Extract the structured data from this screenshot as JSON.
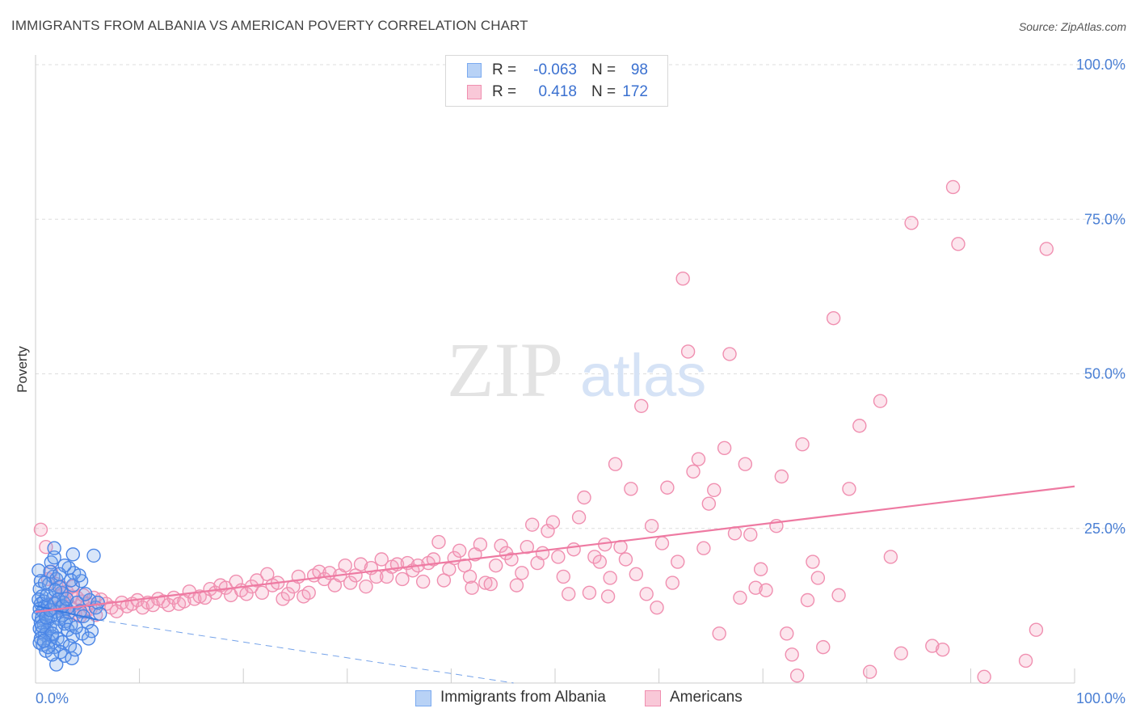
{
  "title": "IMMIGRANTS FROM ALBANIA VS AMERICAN POVERTY CORRELATION CHART",
  "source": "Source: ZipAtlas.com",
  "watermark": {
    "zip": "ZIP",
    "atlas": "atlas"
  },
  "stats": [
    {
      "r_label": "R =",
      "r_value": "-0.063",
      "n_label": "N =",
      "n_value": "98",
      "color": "#7aaaf0",
      "fill": "#b8d2f6"
    },
    {
      "r_label": "R =",
      "r_value": "0.418",
      "n_label": "N =",
      "n_value": "172",
      "color": "#f08fb0",
      "fill": "#f9c8d8"
    }
  ],
  "legend": [
    {
      "label": "Immigrants from Albania",
      "color": "#7aaaf0",
      "fill": "#b8d2f6"
    },
    {
      "label": "Americans",
      "color": "#f08fb0",
      "fill": "#f9c8d8"
    }
  ],
  "colors": {
    "blue": "#3a7be0",
    "pink": "#ee7aa2",
    "axis_label": "#4a7fd4",
    "grid": "#dddddd"
  },
  "chart_data": {
    "type": "scatter",
    "title": "IMMIGRANTS FROM ALBANIA VS AMERICAN POVERTY CORRELATION CHART",
    "xlabel": "",
    "ylabel": "Poverty",
    "xlim": [
      0,
      100
    ],
    "ylim": [
      0,
      100
    ],
    "x_tick_labels": [
      {
        "v": 0,
        "label": "0.0%"
      },
      {
        "v": 100,
        "label": "100.0%"
      }
    ],
    "y_tick_labels": [
      {
        "v": 25,
        "label": "25.0%"
      },
      {
        "v": 50,
        "label": "50.0%"
      },
      {
        "v": 75,
        "label": "75.0%"
      },
      {
        "v": 100,
        "label": "100.0%"
      }
    ],
    "legend_position": "bottom-center",
    "series": [
      {
        "name": "Immigrants from Albania",
        "color": "#3a7be0",
        "trend": {
          "x0": 0,
          "y0": 12.5,
          "x1": 6,
          "y1": 10.2,
          "dash_x1": 46,
          "dash_y1": 0
        },
        "points": [
          [
            0.3,
            18.2
          ],
          [
            0.5,
            16.5
          ],
          [
            0.4,
            15.2
          ],
          [
            0.6,
            14.0
          ],
          [
            0.3,
            13.5
          ],
          [
            0.8,
            13.2
          ],
          [
            0.5,
            12.8
          ],
          [
            0.9,
            12.4
          ],
          [
            0.4,
            12.0
          ],
          [
            0.7,
            11.6
          ],
          [
            1.0,
            11.2
          ],
          [
            0.3,
            10.8
          ],
          [
            0.6,
            10.5
          ],
          [
            1.2,
            10.2
          ],
          [
            0.5,
            9.8
          ],
          [
            0.8,
            9.5
          ],
          [
            1.4,
            9.2
          ],
          [
            0.4,
            8.8
          ],
          [
            1.1,
            8.5
          ],
          [
            0.6,
            8.2
          ],
          [
            0.9,
            7.8
          ],
          [
            1.6,
            7.5
          ],
          [
            0.5,
            7.2
          ],
          [
            1.3,
            6.8
          ],
          [
            0.7,
            6.2
          ],
          [
            1.8,
            5.8
          ],
          [
            1.0,
            5.2
          ],
          [
            0.4,
            6.5
          ],
          [
            1.5,
            10.8
          ],
          [
            1.2,
            12.6
          ],
          [
            1.7,
            13.8
          ],
          [
            1.9,
            11.5
          ],
          [
            2.2,
            10.4
          ],
          [
            2.0,
            9.0
          ],
          [
            1.6,
            8.0
          ],
          [
            2.4,
            12.2
          ],
          [
            2.6,
            11.0
          ],
          [
            2.1,
            7.2
          ],
          [
            2.8,
            9.6
          ],
          [
            2.5,
            14.6
          ],
          [
            1.3,
            16.0
          ],
          [
            1.7,
            17.2
          ],
          [
            1.5,
            19.5
          ],
          [
            1.8,
            20.3
          ],
          [
            1.4,
            18.0
          ],
          [
            2.0,
            16.8
          ],
          [
            2.3,
            15.5
          ],
          [
            1.1,
            14.2
          ],
          [
            0.9,
            16.2
          ],
          [
            1.9,
            15.0
          ],
          [
            2.7,
            13.0
          ],
          [
            3.0,
            12.0
          ],
          [
            3.2,
            11.4
          ],
          [
            2.9,
            10.0
          ],
          [
            3.4,
            9.4
          ],
          [
            3.1,
            8.6
          ],
          [
            3.6,
            7.6
          ],
          [
            2.6,
            6.6
          ],
          [
            3.3,
            6.0
          ],
          [
            2.4,
            5.0
          ],
          [
            2.8,
            4.4
          ],
          [
            3.5,
            4.0
          ],
          [
            2.0,
            3.0
          ],
          [
            1.6,
            4.6
          ],
          [
            3.8,
            5.4
          ],
          [
            1.2,
            5.8
          ],
          [
            0.8,
            6.8
          ],
          [
            0.6,
            9.2
          ],
          [
            1.0,
            10.6
          ],
          [
            1.4,
            11.8
          ],
          [
            1.8,
            12.8
          ],
          [
            2.2,
            13.5
          ],
          [
            2.6,
            12.4
          ],
          [
            3.0,
            13.6
          ],
          [
            3.6,
            15.8
          ],
          [
            4.0,
            13.0
          ],
          [
            4.3,
            11.6
          ],
          [
            4.6,
            10.8
          ],
          [
            5.0,
            9.8
          ],
          [
            5.4,
            8.4
          ],
          [
            5.8,
            12.2
          ],
          [
            6.2,
            11.2
          ],
          [
            5.2,
            13.4
          ],
          [
            4.8,
            14.4
          ],
          [
            4.4,
            16.5
          ],
          [
            3.7,
            17.8
          ],
          [
            3.2,
            18.6
          ],
          [
            2.8,
            19.0
          ],
          [
            2.3,
            17.6
          ],
          [
            1.8,
            21.8
          ],
          [
            3.4,
            16.6
          ],
          [
            4.2,
            17.4
          ],
          [
            3.6,
            20.8
          ],
          [
            5.6,
            20.6
          ],
          [
            6.0,
            13.0
          ],
          [
            4.5,
            8.0
          ],
          [
            5.1,
            7.2
          ],
          [
            3.9,
            9.0
          ]
        ]
      },
      {
        "name": "Americans",
        "color": "#ee7aa2",
        "trend": {
          "x0": 0,
          "y0": 11.5,
          "x1": 100,
          "y1": 31.8
        },
        "points": [
          [
            0.5,
            24.8
          ],
          [
            1.0,
            22.0
          ],
          [
            1.5,
            18.0
          ],
          [
            2.0,
            16.0
          ],
          [
            2.5,
            15.5
          ],
          [
            3.0,
            14.8
          ],
          [
            3.5,
            14.0
          ],
          [
            4.0,
            13.8
          ],
          [
            4.5,
            13.2
          ],
          [
            5.0,
            12.8
          ],
          [
            1.8,
            13.0
          ],
          [
            2.2,
            12.2
          ],
          [
            2.8,
            11.6
          ],
          [
            3.3,
            12.4
          ],
          [
            3.8,
            11.2
          ],
          [
            4.3,
            10.8
          ],
          [
            4.8,
            11.5
          ],
          [
            5.3,
            12.0
          ],
          [
            5.8,
            11.0
          ],
          [
            6.3,
            13.5
          ],
          [
            1.2,
            16.8
          ],
          [
            2.6,
            14.4
          ],
          [
            3.6,
            15.6
          ],
          [
            4.6,
            14.2
          ],
          [
            5.6,
            13.8
          ],
          [
            6.8,
            12.8
          ],
          [
            7.3,
            12.2
          ],
          [
            7.8,
            11.6
          ],
          [
            8.3,
            13.0
          ],
          [
            8.8,
            12.4
          ],
          [
            9.3,
            12.8
          ],
          [
            9.8,
            13.4
          ],
          [
            10.3,
            12.2
          ],
          [
            10.8,
            13.0
          ],
          [
            11.3,
            12.6
          ],
          [
            11.8,
            13.6
          ],
          [
            12.3,
            13.2
          ],
          [
            12.8,
            12.6
          ],
          [
            13.3,
            13.8
          ],
          [
            13.8,
            12.8
          ],
          [
            14.3,
            13.2
          ],
          [
            14.8,
            14.8
          ],
          [
            15.3,
            13.6
          ],
          [
            15.8,
            14.0
          ],
          [
            16.3,
            13.8
          ],
          [
            16.8,
            15.2
          ],
          [
            17.3,
            14.6
          ],
          [
            17.8,
            15.8
          ],
          [
            18.3,
            15.4
          ],
          [
            18.8,
            14.2
          ],
          [
            19.3,
            16.4
          ],
          [
            19.8,
            15.0
          ],
          [
            20.3,
            14.4
          ],
          [
            20.8,
            15.6
          ],
          [
            21.3,
            16.6
          ],
          [
            21.8,
            14.6
          ],
          [
            22.3,
            17.6
          ],
          [
            22.8,
            15.8
          ],
          [
            23.3,
            16.2
          ],
          [
            23.8,
            13.6
          ],
          [
            24.3,
            14.4
          ],
          [
            24.8,
            15.6
          ],
          [
            25.3,
            17.2
          ],
          [
            25.8,
            14.0
          ],
          [
            26.3,
            14.6
          ],
          [
            26.8,
            17.4
          ],
          [
            27.3,
            18.0
          ],
          [
            27.8,
            16.8
          ],
          [
            28.3,
            17.8
          ],
          [
            28.8,
            15.8
          ],
          [
            29.3,
            17.4
          ],
          [
            29.8,
            19.0
          ],
          [
            30.3,
            16.2
          ],
          [
            30.8,
            17.4
          ],
          [
            31.3,
            19.2
          ],
          [
            31.8,
            15.6
          ],
          [
            32.3,
            18.6
          ],
          [
            32.8,
            17.2
          ],
          [
            33.3,
            20.0
          ],
          [
            33.8,
            17.2
          ],
          [
            34.3,
            18.8
          ],
          [
            34.8,
            19.2
          ],
          [
            35.3,
            16.8
          ],
          [
            35.8,
            19.4
          ],
          [
            36.3,
            18.2
          ],
          [
            36.8,
            19.0
          ],
          [
            37.3,
            16.4
          ],
          [
            37.8,
            19.4
          ],
          [
            38.3,
            20.0
          ],
          [
            38.8,
            22.8
          ],
          [
            39.3,
            16.6
          ],
          [
            39.8,
            18.4
          ],
          [
            40.3,
            20.2
          ],
          [
            40.8,
            21.4
          ],
          [
            41.3,
            19.0
          ],
          [
            41.8,
            17.2
          ],
          [
            42.3,
            20.8
          ],
          [
            42.8,
            22.4
          ],
          [
            43.3,
            16.2
          ],
          [
            43.8,
            16.0
          ],
          [
            44.3,
            19.0
          ],
          [
            44.8,
            22.2
          ],
          [
            45.3,
            21.0
          ],
          [
            45.8,
            20.0
          ],
          [
            46.3,
            15.8
          ],
          [
            46.8,
            17.8
          ],
          [
            47.3,
            22.0
          ],
          [
            47.8,
            25.6
          ],
          [
            48.3,
            19.4
          ],
          [
            48.8,
            21.0
          ],
          [
            49.3,
            24.6
          ],
          [
            49.8,
            26.0
          ],
          [
            50.3,
            20.4
          ],
          [
            50.8,
            17.2
          ],
          [
            51.3,
            14.4
          ],
          [
            51.8,
            21.6
          ],
          [
            52.3,
            26.8
          ],
          [
            52.8,
            30.0
          ],
          [
            53.3,
            14.6
          ],
          [
            53.8,
            20.4
          ],
          [
            54.3,
            19.6
          ],
          [
            54.8,
            22.4
          ],
          [
            55.3,
            17.0
          ],
          [
            55.8,
            35.4
          ],
          [
            56.3,
            22.0
          ],
          [
            56.8,
            20.0
          ],
          [
            57.3,
            31.4
          ],
          [
            57.8,
            17.6
          ],
          [
            58.3,
            44.8
          ],
          [
            58.8,
            14.4
          ],
          [
            59.3,
            25.4
          ],
          [
            59.8,
            12.2
          ],
          [
            60.3,
            22.6
          ],
          [
            60.8,
            31.6
          ],
          [
            61.3,
            16.2
          ],
          [
            61.8,
            19.6
          ],
          [
            62.3,
            65.4
          ],
          [
            62.8,
            53.6
          ],
          [
            63.3,
            34.2
          ],
          [
            63.8,
            36.2
          ],
          [
            64.3,
            21.8
          ],
          [
            64.8,
            29.0
          ],
          [
            65.3,
            31.2
          ],
          [
            65.8,
            8.0
          ],
          [
            66.3,
            38.0
          ],
          [
            66.8,
            53.2
          ],
          [
            67.3,
            24.2
          ],
          [
            67.8,
            13.8
          ],
          [
            68.3,
            35.4
          ],
          [
            68.8,
            24.0
          ],
          [
            69.3,
            15.4
          ],
          [
            69.8,
            18.4
          ],
          [
            70.3,
            15.0
          ],
          [
            71.3,
            25.4
          ],
          [
            71.8,
            33.4
          ],
          [
            72.3,
            8.0
          ],
          [
            72.8,
            4.6
          ],
          [
            73.3,
            1.2
          ],
          [
            73.8,
            38.6
          ],
          [
            74.3,
            13.4
          ],
          [
            74.8,
            19.6
          ],
          [
            75.3,
            17.0
          ],
          [
            75.8,
            5.8
          ],
          [
            76.8,
            59.0
          ],
          [
            77.3,
            14.2
          ],
          [
            78.3,
            31.4
          ],
          [
            79.3,
            41.6
          ],
          [
            80.3,
            1.8
          ],
          [
            81.3,
            45.6
          ],
          [
            82.3,
            20.4
          ],
          [
            84.3,
            74.4
          ],
          [
            86.3,
            6.0
          ],
          [
            87.3,
            5.4
          ],
          [
            88.3,
            80.2
          ],
          [
            88.8,
            71.0
          ],
          [
            95.3,
            3.6
          ],
          [
            96.3,
            8.6
          ],
          [
            97.3,
            70.2
          ],
          [
            83.3,
            4.8
          ],
          [
            91.3,
            1.0
          ],
          [
            55.1,
            14.0
          ],
          [
            42.0,
            15.4
          ]
        ]
      }
    ]
  }
}
